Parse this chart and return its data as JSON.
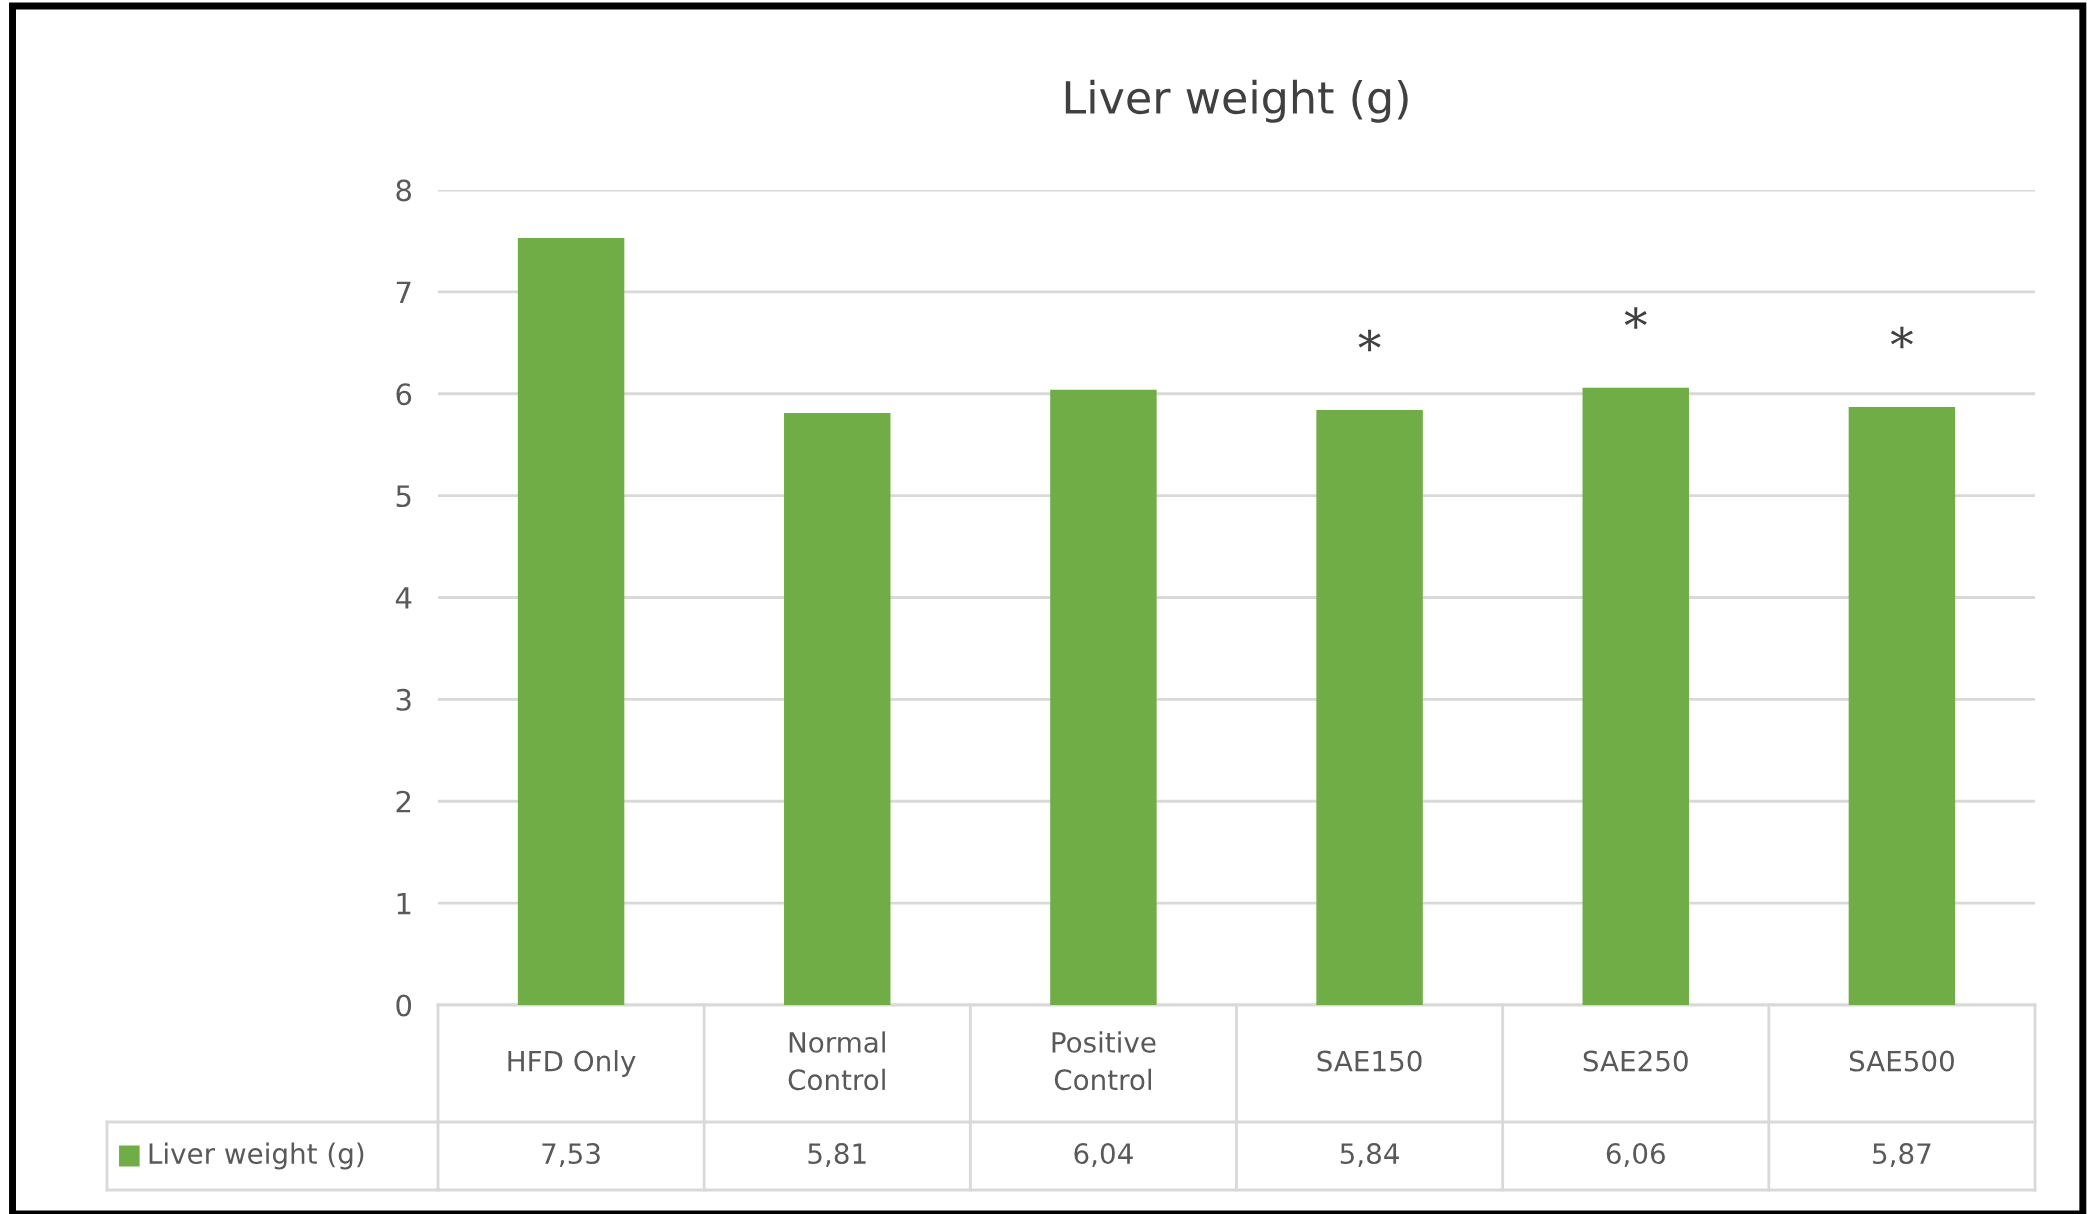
{
  "chart_data": {
    "type": "bar",
    "title": "Liver weight (g)",
    "categories": [
      "HFD Only",
      "Normal\nControl",
      "Positive\nControl",
      "SAE150",
      "SAE250",
      "SAE500"
    ],
    "series": [
      {
        "name": "Liver weight (g)",
        "color": "#70ad47",
        "values": [
          7.53,
          5.81,
          6.04,
          5.84,
          6.06,
          5.87
        ],
        "value_labels": [
          "7,53",
          "5,81",
          "6,04",
          "5,84",
          "6,06",
          "5,87"
        ]
      }
    ],
    "ylim": [
      0,
      8
    ],
    "yticks": [
      0,
      1,
      2,
      3,
      4,
      5,
      6,
      7,
      8
    ],
    "grid": "y",
    "legend": "bottom",
    "annotations": [
      {
        "text": "*",
        "x": "SAE150",
        "y": 5.84
      },
      {
        "text": "*",
        "x": "SAE250",
        "y": 6.06
      },
      {
        "text": "*",
        "x": "SAE500",
        "y": 5.87
      }
    ]
  }
}
